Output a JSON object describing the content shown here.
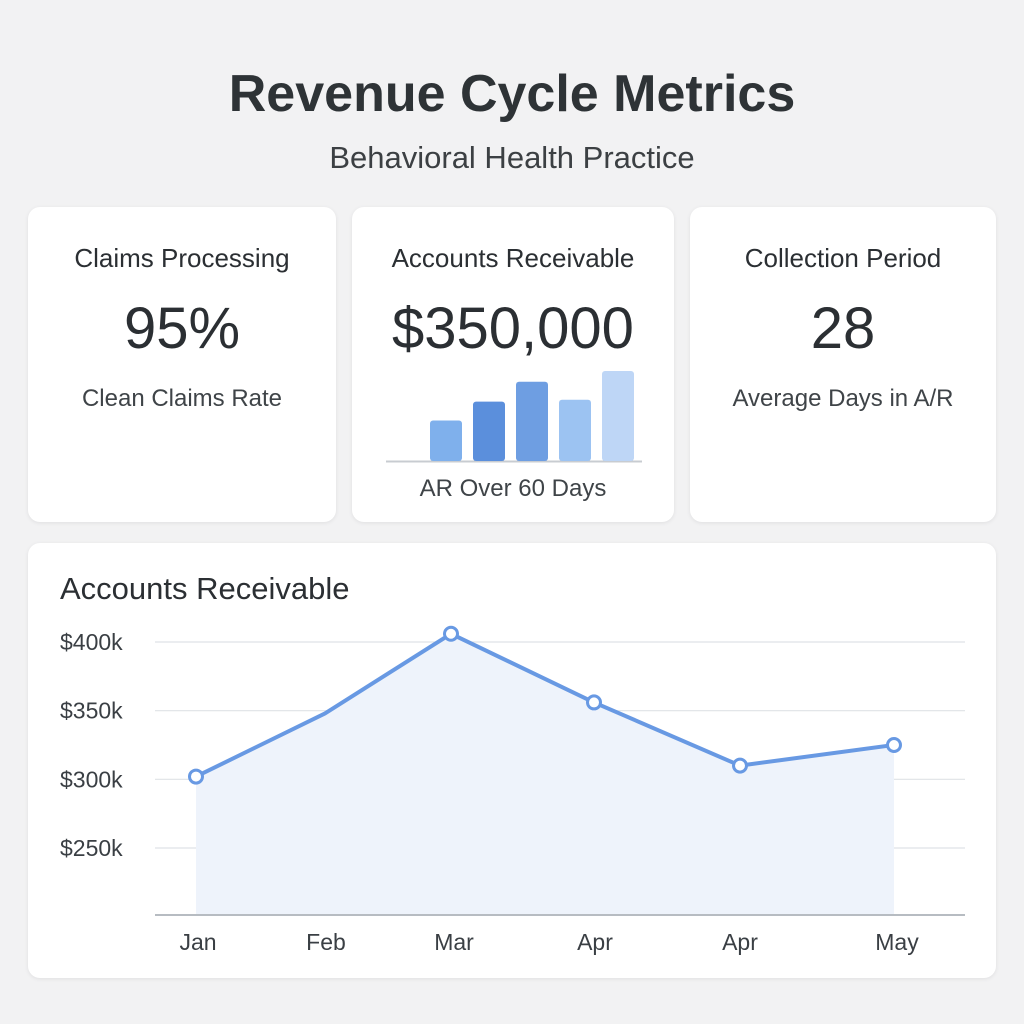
{
  "header": {
    "title": "Revenue Cycle Metrics",
    "subtitle": "Behavioral Health Practice"
  },
  "cards": [
    {
      "heading": "Claims Processing",
      "value": "95%",
      "caption": "Clean Claims Rate"
    },
    {
      "heading": "Accounts Receivable",
      "value": "$350,000",
      "caption": "AR Over 60 Days",
      "mini_bars": [
        {
          "value": 0.45,
          "color": "#7fb0ec"
        },
        {
          "value": 0.66,
          "color": "#5b8fdc"
        },
        {
          "value": 0.88,
          "color": "#6e9ee2"
        },
        {
          "value": 0.68,
          "color": "#9cc3f2"
        },
        {
          "value": 1.0,
          "color": "#bed6f6"
        }
      ]
    },
    {
      "heading": "Collection Period",
      "value": "28",
      "caption": "Average Days in A/R"
    }
  ],
  "chart_data": {
    "type": "area",
    "title": "Accounts Receivable",
    "categories": [
      "Jan",
      "Feb",
      "Mar",
      "Apr",
      "Apr",
      "May"
    ],
    "values": [
      302,
      348,
      406,
      356,
      310,
      325
    ],
    "markers": [
      true,
      false,
      true,
      true,
      true,
      true
    ],
    "ylim": [
      202,
      410
    ],
    "yticks": [
      400,
      350,
      300,
      250
    ],
    "ytick_labels": [
      "$400k",
      "$350k",
      "$300k",
      "$250k"
    ],
    "grid": true,
    "line_color": "#6899e3",
    "fill_color": "#eef3fb"
  }
}
